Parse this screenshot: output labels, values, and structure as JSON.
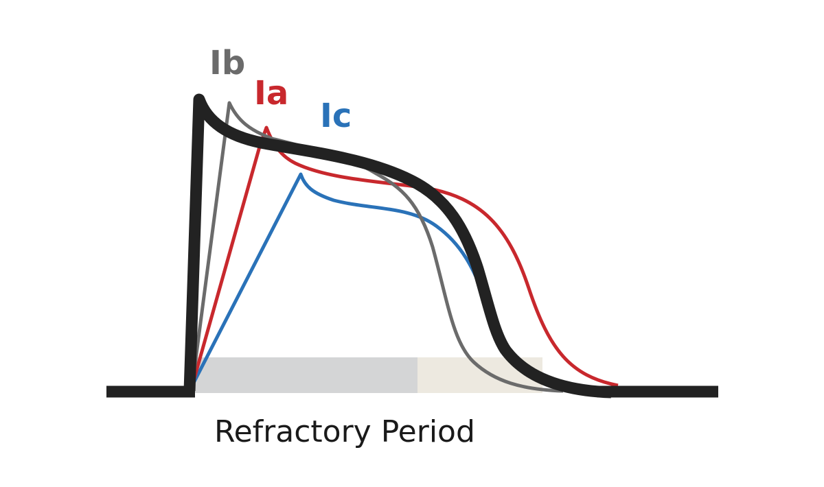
{
  "diagram": {
    "caption": "Refractory Period",
    "curves": [
      {
        "label": "Ib",
        "color": "#6b6b6b"
      },
      {
        "label": "Ia",
        "color": "#c8282d"
      },
      {
        "label": "Ic",
        "color": "#2a72b8"
      }
    ],
    "baseline_color": "#222222",
    "refractory_colors": {
      "absolute": "#d4d5d6",
      "relative": "#ede9e0"
    }
  }
}
